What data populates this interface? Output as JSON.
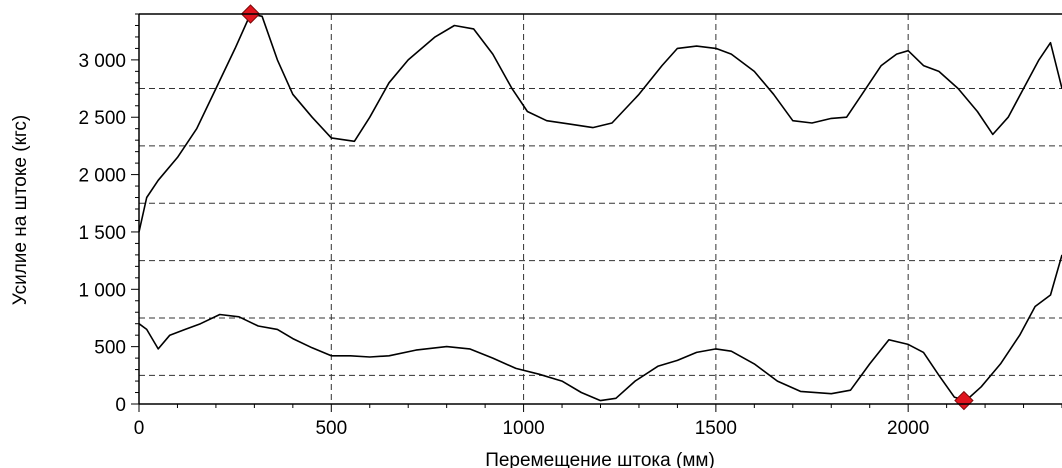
{
  "chart_data": {
    "type": "line",
    "xlabel": "Перемещение штока (мм)",
    "ylabel": "Усилие на штоке (кгс)",
    "xlim": [
      0,
      2400
    ],
    "ylim": [
      0,
      3400
    ],
    "x_ticks": [
      0,
      500,
      1000,
      1500,
      2000
    ],
    "x_tick_labels": [
      "0",
      "500",
      "1000",
      "1500",
      "2000"
    ],
    "y_ticks": [
      0,
      500,
      1000,
      1500,
      2000,
      2500,
      3000
    ],
    "y_tick_labels": [
      "0",
      "500",
      "1 000",
      "1 500",
      "2 000",
      "2 500",
      "3 000"
    ],
    "minor_grid_y": [
      250,
      750,
      1250,
      1750,
      2250,
      2750
    ],
    "grid": "dashed",
    "line_color": "#000000",
    "marker_color": "#e0141e",
    "series": [
      {
        "values": [
          [
            0,
            1500
          ],
          [
            20,
            1800
          ],
          [
            50,
            1950
          ],
          [
            100,
            2150
          ],
          [
            150,
            2400
          ],
          [
            200,
            2750
          ],
          [
            250,
            3100
          ],
          [
            290,
            3400
          ],
          [
            320,
            3380
          ],
          [
            360,
            3000
          ],
          [
            400,
            2700
          ],
          [
            450,
            2500
          ],
          [
            500,
            2320
          ],
          [
            560,
            2290
          ],
          [
            600,
            2500
          ],
          [
            650,
            2800
          ],
          [
            700,
            3000
          ],
          [
            770,
            3200
          ],
          [
            820,
            3300
          ],
          [
            870,
            3270
          ],
          [
            920,
            3050
          ],
          [
            970,
            2750
          ],
          [
            1010,
            2550
          ],
          [
            1060,
            2470
          ],
          [
            1120,
            2440
          ],
          [
            1180,
            2410
          ],
          [
            1230,
            2450
          ],
          [
            1300,
            2700
          ],
          [
            1360,
            2950
          ],
          [
            1400,
            3100
          ],
          [
            1450,
            3120
          ],
          [
            1500,
            3100
          ],
          [
            1540,
            3050
          ],
          [
            1600,
            2900
          ],
          [
            1650,
            2700
          ],
          [
            1700,
            2470
          ],
          [
            1750,
            2450
          ],
          [
            1800,
            2490
          ],
          [
            1840,
            2500
          ],
          [
            1880,
            2700
          ],
          [
            1930,
            2950
          ],
          [
            1970,
            3050
          ],
          [
            2000,
            3080
          ],
          [
            2040,
            2950
          ],
          [
            2080,
            2900
          ],
          [
            2130,
            2750
          ],
          [
            2180,
            2550
          ],
          [
            2220,
            2350
          ],
          [
            2260,
            2500
          ],
          [
            2300,
            2750
          ],
          [
            2340,
            3000
          ],
          [
            2370,
            3150
          ],
          [
            2400,
            2750
          ]
        ]
      },
      {
        "values": [
          [
            0,
            700
          ],
          [
            20,
            650
          ],
          [
            50,
            480
          ],
          [
            80,
            600
          ],
          [
            120,
            650
          ],
          [
            160,
            700
          ],
          [
            210,
            780
          ],
          [
            260,
            760
          ],
          [
            310,
            680
          ],
          [
            360,
            650
          ],
          [
            400,
            570
          ],
          [
            450,
            490
          ],
          [
            500,
            420
          ],
          [
            550,
            420
          ],
          [
            600,
            410
          ],
          [
            650,
            420
          ],
          [
            720,
            470
          ],
          [
            800,
            500
          ],
          [
            860,
            480
          ],
          [
            920,
            400
          ],
          [
            980,
            310
          ],
          [
            1040,
            260
          ],
          [
            1100,
            200
          ],
          [
            1150,
            100
          ],
          [
            1200,
            30
          ],
          [
            1240,
            50
          ],
          [
            1290,
            200
          ],
          [
            1350,
            330
          ],
          [
            1400,
            380
          ],
          [
            1450,
            450
          ],
          [
            1500,
            480
          ],
          [
            1540,
            460
          ],
          [
            1600,
            350
          ],
          [
            1660,
            200
          ],
          [
            1720,
            110
          ],
          [
            1800,
            90
          ],
          [
            1850,
            120
          ],
          [
            1900,
            350
          ],
          [
            1950,
            560
          ],
          [
            2000,
            520
          ],
          [
            2040,
            450
          ],
          [
            2080,
            250
          ],
          [
            2120,
            60
          ],
          [
            2150,
            30
          ],
          [
            2190,
            150
          ],
          [
            2240,
            350
          ],
          [
            2290,
            600
          ],
          [
            2330,
            850
          ],
          [
            2370,
            950
          ],
          [
            2400,
            1300
          ]
        ]
      }
    ],
    "markers": [
      {
        "x": 290,
        "y": 3400
      },
      {
        "x": 2145,
        "y": 30
      }
    ]
  }
}
